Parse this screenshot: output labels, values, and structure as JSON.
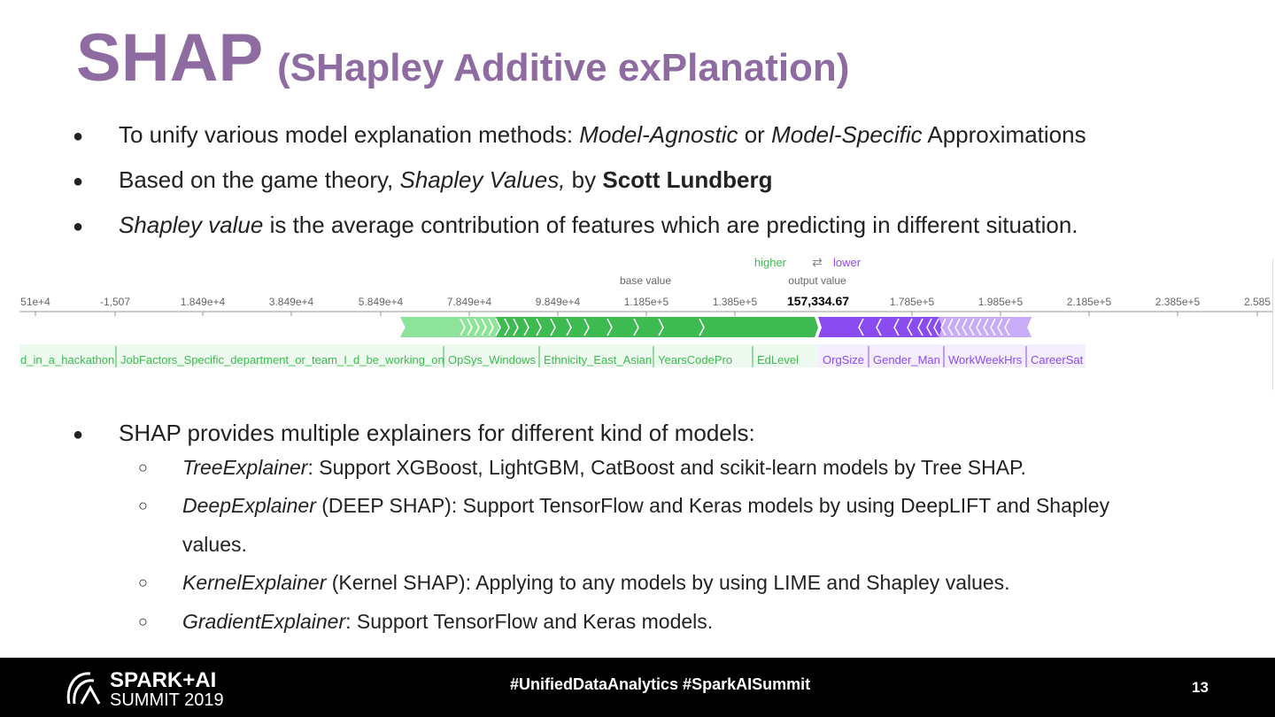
{
  "header": {
    "title": "SHAP",
    "subtitle": "(SHapley Additive exPlanation)"
  },
  "bullets": [
    [
      "To unify various model explanation methods: ",
      "Model-Agnostic",
      " or ",
      "Model-Specific",
      " Approximations"
    ],
    [
      "Based on the game theory, ",
      "Shapley Values,",
      " by ",
      "Scott Lundberg"
    ],
    [
      "Shapley value",
      " is the average contribution of features which are predicting in different situation."
    ],
    [
      "SHAP provides multiple explainers for different kind of models:"
    ]
  ],
  "sub_bullets": [
    [
      "TreeExplainer",
      ": Support XGBoost, LightGBM, CatBoost and scikit-learn models by Tree SHAP."
    ],
    [
      "DeepExplainer",
      " (DEEP SHAP): Support TensorFlow and Keras models by using DeepLIFT and Shapley values."
    ],
    [
      "KernelExplainer",
      " (Kernel SHAP): Applying to any models by using LIME and Shapley values."
    ],
    [
      "GradientExplainer",
      ": Support TensorFlow and Keras models."
    ]
  ],
  "figure": {
    "direction": {
      "higher": "higher",
      "lower": "lower"
    },
    "base_label": "base value",
    "output_label": "output value",
    "output_value": "157,334.67",
    "scale_ticks": [
      "51e+4",
      "-1,507",
      "1.849e+4",
      "3.849e+4",
      "5.849e+4",
      "7.849e+4",
      "9.849e+4",
      "1.185e+5",
      "1.385e+5",
      "1.785e+5",
      "1.985e+5",
      "2.185e+5",
      "2.385e+5",
      "2.585"
    ],
    "features_higher": [
      "d_in_a_hackathon",
      "JobFactors_Specific_department_or_team_I_d_be_working_on",
      "OpSys_Windows",
      "Ethnicity_East_Asian",
      "YearsCodePro",
      "EdLevel"
    ],
    "features_lower": [
      "OrgSize",
      "Gender_Man",
      "WorkWeekHrs",
      "CareerSat"
    ]
  },
  "footer": {
    "logo_top": "SPARK+AI",
    "logo_bottom": "SUMMIT 2019",
    "hashtags": "#UnifiedDataAnalytics #SparkAISummit",
    "page": "13"
  }
}
